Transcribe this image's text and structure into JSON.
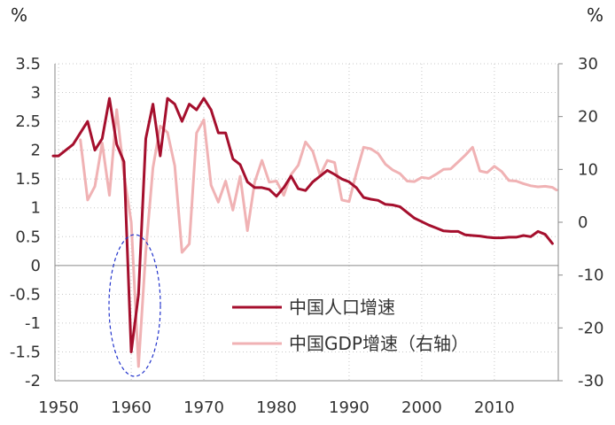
{
  "chart_data": {
    "type": "line",
    "left_unit": "%",
    "right_unit": "%",
    "x": {
      "min": 1949.5,
      "max": 2018.8,
      "ticks": [
        1950,
        1960,
        1970,
        1980,
        1990,
        2000,
        2010
      ],
      "tick_labels": [
        "1950",
        "1960",
        "1970",
        "1980",
        "1990",
        "2000",
        "2010"
      ]
    },
    "y_left": {
      "min": -2,
      "max": 3.5,
      "ticks": [
        -2,
        -1.5,
        -1,
        -0.5,
        0,
        0.5,
        1,
        1.5,
        2,
        2.5,
        3,
        3.5
      ],
      "tick_labels": [
        "-2",
        "-1.5",
        "-1",
        "-0.5",
        "0",
        "0.5",
        "1",
        "1.5",
        "2",
        "2.5",
        "3",
        "3.5"
      ]
    },
    "y_right": {
      "min": -30,
      "max": 30,
      "ticks": [
        -30,
        -20,
        -10,
        0,
        10,
        20,
        30
      ],
      "tick_labels": [
        "-30",
        "-20",
        "-10",
        "0",
        "10",
        "20",
        "30"
      ]
    },
    "grid": "dotted",
    "series": [
      {
        "name": "中国人口增速",
        "axis": "left",
        "color": "#a50f2d",
        "x": [
          1949,
          1950,
          1951,
          1952,
          1953,
          1954,
          1955,
          1956,
          1957,
          1958,
          1959,
          1960,
          1961,
          1962,
          1963,
          1964,
          1965,
          1966,
          1967,
          1968,
          1969,
          1970,
          1971,
          1972,
          1973,
          1974,
          1975,
          1976,
          1977,
          1978,
          1979,
          1980,
          1981,
          1982,
          1983,
          1984,
          1985,
          1986,
          1987,
          1988,
          1989,
          1990,
          1991,
          1992,
          1993,
          1994,
          1995,
          1996,
          1997,
          1998,
          1999,
          2000,
          2001,
          2002,
          2003,
          2004,
          2005,
          2006,
          2007,
          2008,
          2009,
          2010,
          2011,
          2012,
          2013,
          2014,
          2015,
          2016,
          2017,
          2018
        ],
        "values": [
          1.9,
          1.9,
          2.0,
          2.1,
          2.3,
          2.5,
          2.0,
          2.2,
          2.9,
          2.1,
          1.8,
          -1.5,
          -0.5,
          2.2,
          2.8,
          1.9,
          2.9,
          2.8,
          2.5,
          2.8,
          2.7,
          2.9,
          2.7,
          2.3,
          2.3,
          1.85,
          1.75,
          1.45,
          1.35,
          1.35,
          1.32,
          1.2,
          1.35,
          1.55,
          1.33,
          1.3,
          1.45,
          1.55,
          1.65,
          1.58,
          1.5,
          1.45,
          1.35,
          1.18,
          1.15,
          1.13,
          1.06,
          1.05,
          1.02,
          0.92,
          0.82,
          0.76,
          0.7,
          0.65,
          0.6,
          0.59,
          0.59,
          0.53,
          0.52,
          0.51,
          0.49,
          0.48,
          0.48,
          0.49,
          0.49,
          0.52,
          0.5,
          0.59,
          0.54,
          0.38
        ]
      },
      {
        "name": "中国GDP增速（右轴）",
        "axis": "right",
        "color": "#f0b2b4",
        "x": [
          1953,
          1954,
          1955,
          1956,
          1957,
          1958,
          1959,
          1960,
          1961,
          1962,
          1963,
          1964,
          1965,
          1966,
          1967,
          1968,
          1969,
          1970,
          1971,
          1972,
          1973,
          1974,
          1975,
          1976,
          1977,
          1978,
          1979,
          1980,
          1981,
          1982,
          1983,
          1984,
          1985,
          1986,
          1987,
          1988,
          1989,
          1990,
          1991,
          1992,
          1993,
          1994,
          1995,
          1996,
          1997,
          1998,
          1999,
          2000,
          2001,
          2002,
          2003,
          2004,
          2005,
          2006,
          2007,
          2008,
          2009,
          2010,
          2011,
          2012,
          2013,
          2014,
          2015,
          2016,
          2017,
          2018,
          2019
        ],
        "values": [
          15.6,
          4.2,
          6.8,
          15.0,
          5.1,
          21.3,
          9.0,
          0.0,
          -27.3,
          -5.6,
          10.3,
          18.2,
          17.0,
          10.7,
          -5.7,
          -4.1,
          16.9,
          19.4,
          7.0,
          3.8,
          7.8,
          2.3,
          8.7,
          -1.6,
          7.6,
          11.7,
          7.6,
          7.8,
          5.1,
          9.0,
          10.8,
          15.2,
          13.4,
          8.9,
          11.7,
          11.3,
          4.2,
          3.9,
          9.3,
          14.2,
          13.9,
          13.0,
          11.0,
          9.9,
          9.2,
          7.8,
          7.7,
          8.5,
          8.3,
          9.1,
          10.0,
          10.1,
          11.4,
          12.7,
          14.2,
          9.7,
          9.4,
          10.6,
          9.6,
          7.9,
          7.8,
          7.3,
          6.9,
          6.7,
          6.8,
          6.6,
          6.1
        ]
      }
    ],
    "legend": {
      "position": "center-right",
      "entries": [
        "中国人口增速",
        "中国GDP增速（右轴）"
      ]
    },
    "annotation": "dashed-ellipse"
  }
}
